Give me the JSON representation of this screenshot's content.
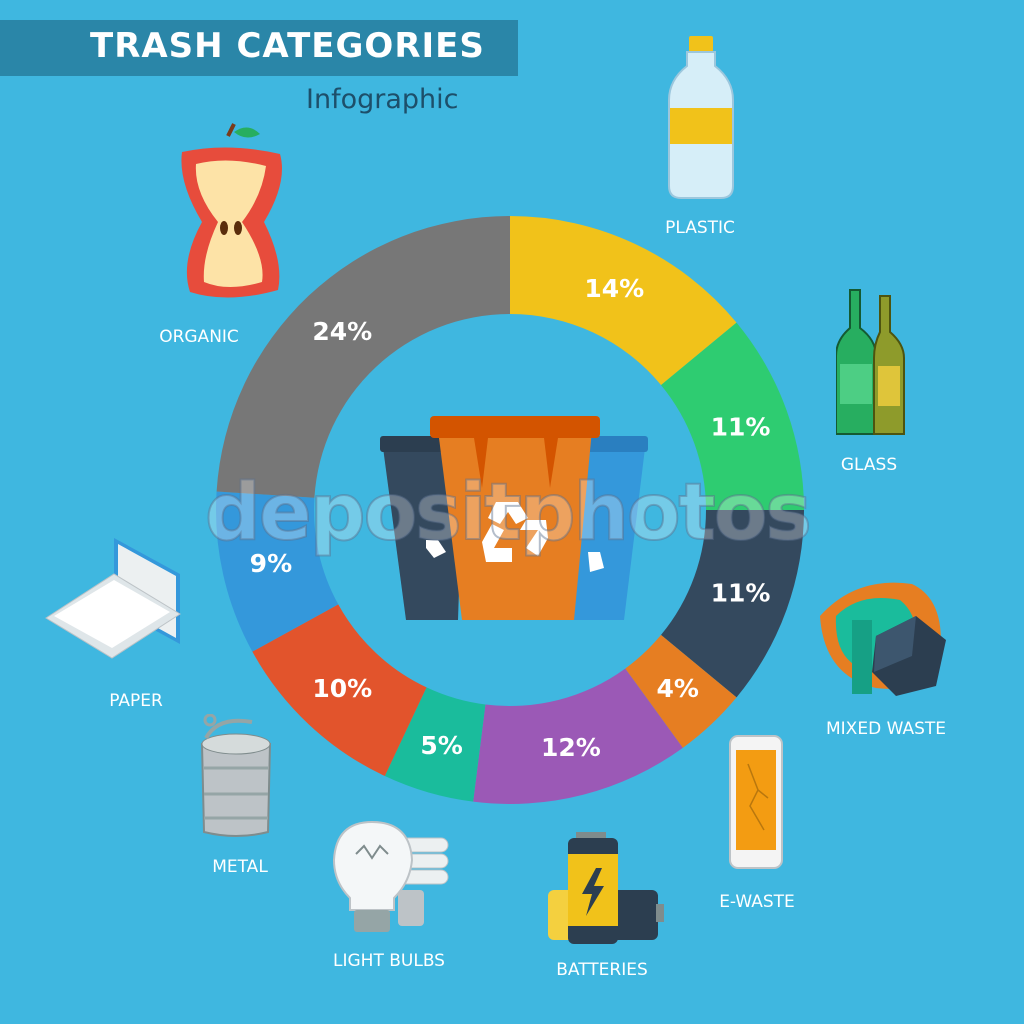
{
  "header": {
    "title": "TRASH CATEGORIES",
    "subtitle": "Infographic"
  },
  "watermark": "depositphotos",
  "colors": {
    "background": "#3fb7e0",
    "title_bar": "#2a86a8"
  },
  "chart_data": {
    "type": "pie",
    "donut": true,
    "categories": [
      "PLASTIC",
      "GLASS",
      "MIXED WASTE",
      "E-WASTE",
      "BATTERIES",
      "LIGHT BULBS",
      "METAL",
      "PAPER",
      "ORGANIC"
    ],
    "values": [
      14,
      11,
      11,
      4,
      12,
      5,
      10,
      9,
      24
    ],
    "value_labels": [
      "14%",
      "11%",
      "11%",
      "4%",
      "12%",
      "5%",
      "10%",
      "9%",
      "24%"
    ],
    "colors": [
      "#f1c21a",
      "#2ecc71",
      "#34495e",
      "#e67e22",
      "#9b59b6",
      "#1abc9c",
      "#e2542c",
      "#3498db",
      "#777777"
    ],
    "icons": [
      "plastic-bottle-icon",
      "glass-bottles-icon",
      "mixed-waste-icon",
      "smartphone-icon",
      "batteries-icon",
      "light-bulbs-icon",
      "tin-can-icon",
      "paper-box-icon",
      "apple-core-icon"
    ],
    "center_icon": "recycle-bins-icon"
  }
}
